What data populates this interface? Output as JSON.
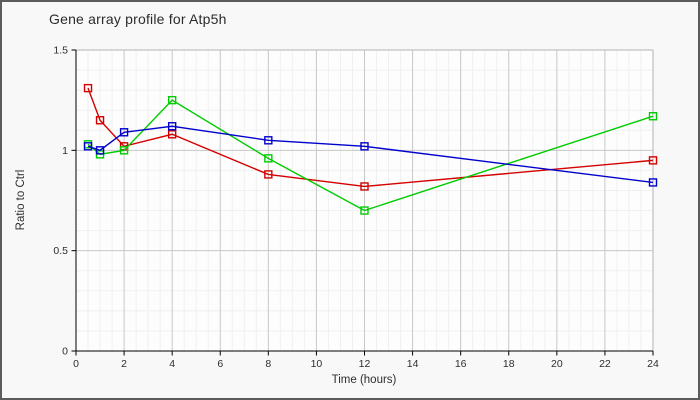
{
  "frame": {
    "background": "#f8f8f8",
    "border_color": "#5c5c5c",
    "plot_background": "#fdfdfd"
  },
  "colors": {
    "major_grid": "#c8c8c8",
    "minor_grid": "#f0f0f0",
    "axis_line": "#000000",
    "frame_line": "#b4b4b4",
    "tick_text": "#2e2e2e"
  },
  "chart_data": {
    "type": "line",
    "title": "Gene array profile for Atp5h",
    "xlabel": "Time (hours)",
    "ylabel": "Ratio to Ctrl",
    "x": [
      0.5,
      1,
      2,
      4,
      8,
      12,
      24
    ],
    "series": [
      {
        "name": "red",
        "color": "#d40000",
        "marker": "square",
        "values": [
          1.31,
          1.15,
          1.02,
          1.08,
          0.88,
          0.82,
          0.95
        ]
      },
      {
        "name": "green",
        "color": "#00cc00",
        "marker": "square",
        "values": [
          1.03,
          0.98,
          1.0,
          1.25,
          0.96,
          0.7,
          1.17
        ]
      },
      {
        "name": "blue",
        "color": "#0000cc",
        "marker": "square",
        "values": [
          1.02,
          1.0,
          1.09,
          1.12,
          1.05,
          1.02,
          0.84
        ]
      }
    ],
    "xlim": [
      0,
      24
    ],
    "ylim": [
      0,
      1.5
    ],
    "x_ticks": [
      {
        "v": 0,
        "label": "0"
      },
      {
        "v": 2,
        "label": "2"
      },
      {
        "v": 4,
        "label": "4"
      },
      {
        "v": 6,
        "label": "6"
      },
      {
        "v": 8,
        "label": "8"
      },
      {
        "v": 10,
        "label": "10"
      },
      {
        "v": 12,
        "label": "12"
      },
      {
        "v": 14,
        "label": "14"
      },
      {
        "v": 16,
        "label": "16"
      },
      {
        "v": 18,
        "label": "18"
      },
      {
        "v": 20,
        "label": "20"
      },
      {
        "v": 22,
        "label": "22"
      },
      {
        "v": 24,
        "label": "24"
      }
    ],
    "y_ticks": [
      {
        "v": 0,
        "label": "0"
      },
      {
        "v": 0.5,
        "label": "0.5"
      },
      {
        "v": 1,
        "label": "1"
      },
      {
        "v": 1.5,
        "label": "1.5"
      }
    ],
    "minor_x_step": 0.5,
    "minor_y_step": 0.1,
    "grid": true,
    "legend": "none"
  }
}
